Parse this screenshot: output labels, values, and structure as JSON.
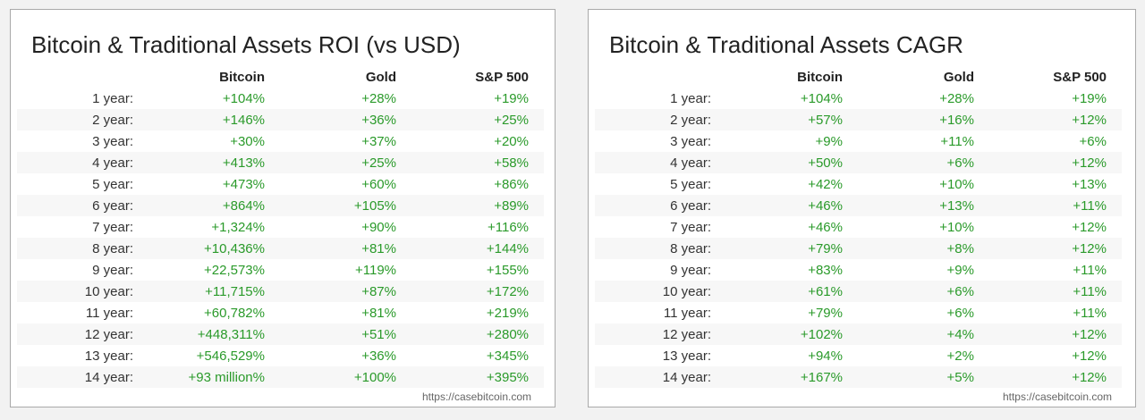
{
  "colors": {
    "positive": "#2a9a2a",
    "stripe": "#f7f7f7"
  },
  "tables": [
    {
      "title": "Bitcoin & Traditional Assets ROI (vs USD)",
      "columns": [
        "Bitcoin",
        "Gold",
        "S&P 500"
      ],
      "rows": [
        [
          "1 year:",
          "+104%",
          "+28%",
          "+19%"
        ],
        [
          "2 year:",
          "+146%",
          "+36%",
          "+25%"
        ],
        [
          "3 year:",
          "+30%",
          "+37%",
          "+20%"
        ],
        [
          "4 year:",
          "+413%",
          "+25%",
          "+58%"
        ],
        [
          "5 year:",
          "+473%",
          "+60%",
          "+86%"
        ],
        [
          "6 year:",
          "+864%",
          "+105%",
          "+89%"
        ],
        [
          "7 year:",
          "+1,324%",
          "+90%",
          "+116%"
        ],
        [
          "8 year:",
          "+10,436%",
          "+81%",
          "+144%"
        ],
        [
          "9 year:",
          "+22,573%",
          "+119%",
          "+155%"
        ],
        [
          "10 year:",
          "+11,715%",
          "+87%",
          "+172%"
        ],
        [
          "11 year:",
          "+60,782%",
          "+81%",
          "+219%"
        ],
        [
          "12 year:",
          "+448,311%",
          "+51%",
          "+280%"
        ],
        [
          "13 year:",
          "+546,529%",
          "+36%",
          "+345%"
        ],
        [
          "14 year:",
          "+93 million%",
          "+100%",
          "+395%"
        ]
      ],
      "source": "https://casebitcoin.com"
    },
    {
      "title": "Bitcoin & Traditional Assets CAGR",
      "columns": [
        "Bitcoin",
        "Gold",
        "S&P 500"
      ],
      "rows": [
        [
          "1 year:",
          "+104%",
          "+28%",
          "+19%"
        ],
        [
          "2 year:",
          "+57%",
          "+16%",
          "+12%"
        ],
        [
          "3 year:",
          "+9%",
          "+11%",
          "+6%"
        ],
        [
          "4 year:",
          "+50%",
          "+6%",
          "+12%"
        ],
        [
          "5 year:",
          "+42%",
          "+10%",
          "+13%"
        ],
        [
          "6 year:",
          "+46%",
          "+13%",
          "+11%"
        ],
        [
          "7 year:",
          "+46%",
          "+10%",
          "+12%"
        ],
        [
          "8 year:",
          "+79%",
          "+8%",
          "+12%"
        ],
        [
          "9 year:",
          "+83%",
          "+9%",
          "+11%"
        ],
        [
          "10 year:",
          "+61%",
          "+6%",
          "+11%"
        ],
        [
          "11 year:",
          "+79%",
          "+6%",
          "+11%"
        ],
        [
          "12 year:",
          "+102%",
          "+4%",
          "+12%"
        ],
        [
          "13 year:",
          "+94%",
          "+2%",
          "+12%"
        ],
        [
          "14 year:",
          "+167%",
          "+5%",
          "+12%"
        ]
      ],
      "source": "https://casebitcoin.com"
    }
  ]
}
